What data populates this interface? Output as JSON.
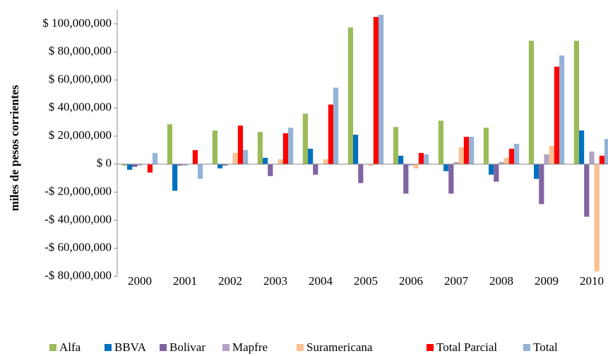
{
  "chart_data": {
    "type": "bar",
    "y_label": "miles de pesos corrientes",
    "categories": [
      "2000",
      "2001",
      "2002",
      "2003",
      "2004",
      "2005",
      "2006",
      "2007",
      "2008",
      "2009",
      "2010"
    ],
    "series": [
      {
        "name": "Alfa",
        "color": "#9bbb59",
        "values": [
          -1000000,
          28500000,
          24000000,
          23000000,
          36000000,
          97500000,
          26500000,
          31000000,
          26000000,
          88000000,
          88000000
        ]
      },
      {
        "name": "BBVA",
        "color": "#0070c0",
        "values": [
          -4000000,
          -19000000,
          -3000000,
          4500000,
          11000000,
          21000000,
          6000000,
          -5000000,
          -7500000,
          -10500000,
          24000000
        ]
      },
      {
        "name": "Bolivar",
        "color": "#8064a2",
        "values": [
          -2000000,
          -1000000,
          -1000000,
          -8500000,
          -7500000,
          -13500000,
          -21000000,
          -21000000,
          -12500000,
          -28500000,
          -37500000
        ]
      },
      {
        "name": "Mapfre",
        "color": "#b3a2c7",
        "values": [
          -1000000,
          -1000000,
          0,
          0,
          0,
          0,
          -1000000,
          1500000,
          1500000,
          7000000,
          9000000
        ]
      },
      {
        "name": "Suramericana",
        "color": "#fac090",
        "values": [
          0,
          0,
          8000000,
          3500000,
          3500000,
          -1000000,
          -3000000,
          12000000,
          4500000,
          13000000,
          -76500000
        ]
      },
      {
        "name": "Total Parcial",
        "color": "#ff0000",
        "values": [
          -6000000,
          10000000,
          27500000,
          22000000,
          42500000,
          105000000,
          8000000,
          19500000,
          11000000,
          69500000,
          6000000
        ]
      },
      {
        "name": "Total",
        "color": "#95b3d7",
        "values": [
          8000000,
          -10500000,
          10000000,
          26000000,
          54500000,
          106500000,
          7000000,
          19500000,
          14500000,
          77500000,
          18000000
        ]
      }
    ],
    "ylim": [
      -80000000,
      110000000
    ],
    "yticks": [
      {
        "value": -80000000,
        "label": "-$ 80,000,000"
      },
      {
        "value": -60000000,
        "label": "-$ 60,000,000"
      },
      {
        "value": -40000000,
        "label": "-$ 40,000,000"
      },
      {
        "value": -20000000,
        "label": "-$ 20,000,000"
      },
      {
        "value": 0,
        "label": "$ 0"
      },
      {
        "value": 20000000,
        "label": "$ 20,000,000"
      },
      {
        "value": 40000000,
        "label": "$ 40,000,000"
      },
      {
        "value": 60000000,
        "label": "$ 60,000,000"
      },
      {
        "value": 80000000,
        "label": "$ 80,000,000"
      },
      {
        "value": 100000000,
        "label": "$ 100,000,000"
      }
    ],
    "grid": false,
    "legend": "bottom"
  }
}
